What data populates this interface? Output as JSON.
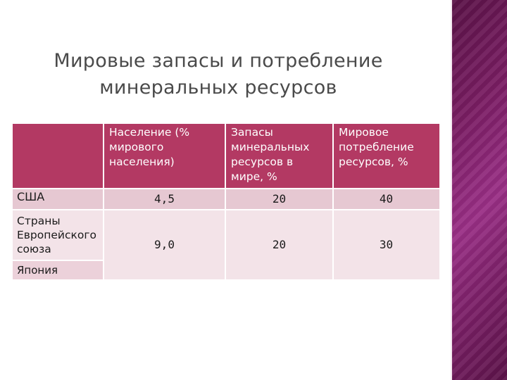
{
  "title": "Мировые запасы и потребление минеральных ресурсов",
  "table": {
    "headers": [
      "",
      "Население (% мирового населения)",
      "Запасы минеральных ресурсов в мире, %",
      "Мировое потребление ресурсов, %"
    ],
    "rows": [
      {
        "label": "США",
        "values": [
          "4,5",
          "20",
          "40"
        ]
      },
      {
        "label": "Страны Европейского союза",
        "values": [
          "9,0",
          "20",
          "30"
        ]
      },
      {
        "label": "Япония",
        "values": [
          "",
          "",
          ""
        ]
      }
    ]
  },
  "colors": {
    "header_bg": "#b33963",
    "row_bg": "#e6c8d2",
    "row_alt_bg": "#f3e3e8",
    "side_band": "#7a1d63"
  }
}
